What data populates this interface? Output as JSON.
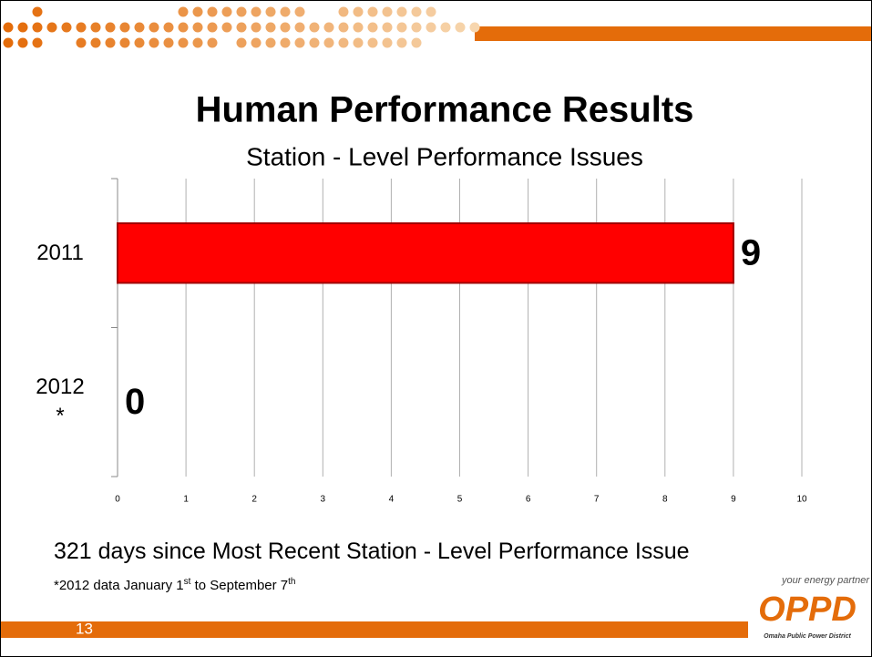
{
  "header": {
    "title": "Human Performance Results"
  },
  "chart_data": {
    "type": "bar",
    "orientation": "horizontal",
    "title": "Station - Level Performance Issues",
    "categories": [
      "2011",
      "2012 *"
    ],
    "values": [
      9,
      0
    ],
    "color": "#ff0000",
    "xlim": [
      0,
      10
    ],
    "xticks": [
      0,
      1,
      2,
      3,
      4,
      5,
      6,
      7,
      8,
      9,
      10
    ],
    "grid": true
  },
  "summary": "321 days since Most Recent Station - Level Performance Issue",
  "footnote": [
    "*2012 data January 1",
    "st",
    " to September 7",
    "th"
  ],
  "page_number": "13",
  "logo": {
    "tagline": "your energy partner",
    "name": "OPPD",
    "full_name": "Omaha Public Power District"
  }
}
